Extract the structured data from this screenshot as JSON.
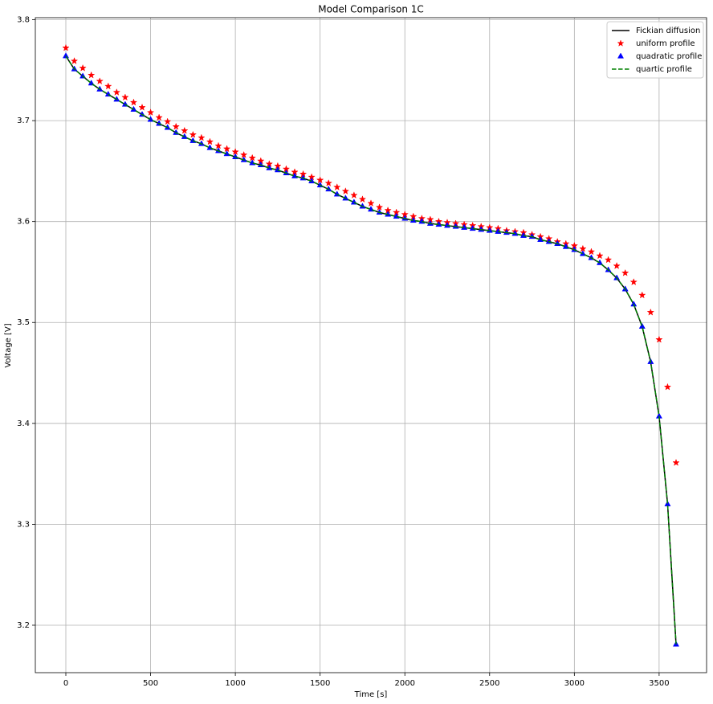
{
  "chart_data": {
    "type": "line",
    "title": "Model Comparison 1C",
    "xlabel": "Time [s]",
    "ylabel": "Voltage [V]",
    "x": [
      0,
      50,
      100,
      150,
      200,
      250,
      300,
      350,
      400,
      450,
      500,
      550,
      600,
      650,
      700,
      750,
      800,
      850,
      900,
      950,
      1000,
      1050,
      1100,
      1150,
      1200,
      1250,
      1300,
      1350,
      1400,
      1450,
      1500,
      1550,
      1600,
      1650,
      1700,
      1750,
      1800,
      1850,
      1900,
      1950,
      2000,
      2050,
      2100,
      2150,
      2200,
      2250,
      2300,
      2350,
      2400,
      2450,
      2500,
      2550,
      2600,
      2650,
      2700,
      2750,
      2800,
      2850,
      2900,
      2950,
      3000,
      3050,
      3100,
      3150,
      3200,
      3250,
      3300,
      3350,
      3400,
      3450,
      3500,
      3550,
      3600
    ],
    "series": [
      {
        "name": "Fickian diffusion",
        "color": "#000000",
        "linestyle": "solid",
        "marker": null,
        "values": [
          3.764,
          3.751,
          3.744,
          3.737,
          3.731,
          3.726,
          3.721,
          3.716,
          3.711,
          3.706,
          3.701,
          3.697,
          3.693,
          3.688,
          3.684,
          3.68,
          3.677,
          3.673,
          3.67,
          3.667,
          3.664,
          3.661,
          3.658,
          3.656,
          3.653,
          3.651,
          3.648,
          3.645,
          3.643,
          3.64,
          3.636,
          3.632,
          3.627,
          3.623,
          3.619,
          3.615,
          3.612,
          3.609,
          3.607,
          3.605,
          3.603,
          3.601,
          3.6,
          3.598,
          3.597,
          3.596,
          3.595,
          3.594,
          3.593,
          3.592,
          3.591,
          3.59,
          3.589,
          3.588,
          3.586,
          3.585,
          3.582,
          3.58,
          3.578,
          3.575,
          3.572,
          3.568,
          3.564,
          3.559,
          3.552,
          3.544,
          3.533,
          3.518,
          3.496,
          3.461,
          3.407,
          3.32,
          3.181
        ]
      },
      {
        "name": "uniform profile",
        "color": "#ff0000",
        "linestyle": null,
        "marker": "star",
        "values": [
          3.772,
          3.759,
          3.752,
          3.745,
          3.739,
          3.734,
          3.728,
          3.723,
          3.718,
          3.713,
          3.708,
          3.703,
          3.699,
          3.694,
          3.69,
          3.686,
          3.683,
          3.679,
          3.675,
          3.672,
          3.669,
          3.666,
          3.663,
          3.66,
          3.657,
          3.655,
          3.652,
          3.649,
          3.647,
          3.644,
          3.641,
          3.638,
          3.634,
          3.63,
          3.626,
          3.622,
          3.618,
          3.614,
          3.611,
          3.609,
          3.607,
          3.605,
          3.603,
          3.602,
          3.6,
          3.599,
          3.598,
          3.597,
          3.596,
          3.595,
          3.594,
          3.593,
          3.591,
          3.59,
          3.589,
          3.587,
          3.585,
          3.583,
          3.58,
          3.578,
          3.576,
          3.573,
          3.57,
          3.566,
          3.562,
          3.556,
          3.549,
          3.54,
          3.527,
          3.51,
          3.483,
          3.436,
          3.361
        ]
      },
      {
        "name": "quadratic profile",
        "color": "#0000ff",
        "linestyle": null,
        "marker": "triangle",
        "values": [
          3.764,
          3.751,
          3.744,
          3.737,
          3.731,
          3.726,
          3.721,
          3.716,
          3.711,
          3.706,
          3.701,
          3.697,
          3.693,
          3.688,
          3.684,
          3.68,
          3.677,
          3.673,
          3.67,
          3.667,
          3.664,
          3.661,
          3.658,
          3.656,
          3.653,
          3.651,
          3.648,
          3.645,
          3.643,
          3.64,
          3.636,
          3.632,
          3.627,
          3.623,
          3.619,
          3.615,
          3.612,
          3.609,
          3.607,
          3.605,
          3.603,
          3.601,
          3.6,
          3.598,
          3.597,
          3.596,
          3.595,
          3.594,
          3.593,
          3.592,
          3.591,
          3.59,
          3.589,
          3.588,
          3.586,
          3.585,
          3.582,
          3.58,
          3.578,
          3.575,
          3.572,
          3.568,
          3.564,
          3.559,
          3.552,
          3.544,
          3.533,
          3.518,
          3.496,
          3.461,
          3.407,
          3.32,
          3.181
        ]
      },
      {
        "name": "quartic profile",
        "color": "#008000",
        "linestyle": "dashed",
        "marker": null,
        "values": [
          3.764,
          3.751,
          3.744,
          3.737,
          3.731,
          3.726,
          3.721,
          3.716,
          3.711,
          3.706,
          3.701,
          3.697,
          3.693,
          3.688,
          3.684,
          3.68,
          3.677,
          3.673,
          3.67,
          3.667,
          3.664,
          3.661,
          3.658,
          3.656,
          3.653,
          3.651,
          3.648,
          3.645,
          3.643,
          3.64,
          3.636,
          3.632,
          3.627,
          3.623,
          3.619,
          3.615,
          3.612,
          3.609,
          3.607,
          3.605,
          3.603,
          3.601,
          3.6,
          3.598,
          3.597,
          3.596,
          3.595,
          3.594,
          3.593,
          3.592,
          3.591,
          3.59,
          3.589,
          3.588,
          3.586,
          3.585,
          3.582,
          3.58,
          3.578,
          3.575,
          3.572,
          3.568,
          3.564,
          3.559,
          3.552,
          3.544,
          3.533,
          3.518,
          3.496,
          3.461,
          3.407,
          3.32,
          3.181
        ]
      }
    ],
    "xlim": [
      -180,
      3780
    ],
    "ylim": [
      3.153,
      3.802
    ],
    "xticks": [
      0,
      500,
      1000,
      1500,
      2000,
      2500,
      3000,
      3500
    ],
    "yticks": [
      3.2,
      3.3,
      3.4,
      3.5,
      3.6,
      3.7,
      3.8
    ],
    "grid": true,
    "legend": "upper right"
  }
}
